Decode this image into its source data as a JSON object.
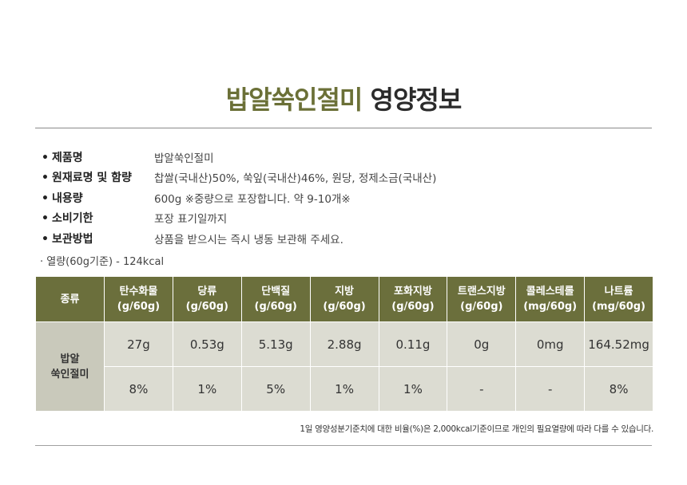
{
  "title": {
    "product": "밥알쑥인절미",
    "suffix": "영양정보"
  },
  "info": [
    {
      "label": "제품명",
      "value": "밥알쑥인절미"
    },
    {
      "label": "원재료명 및 함량",
      "value": "찹쌀(국내산)50%, 쑥잎(국내산)46%, 원당, 정제소금(국내산)"
    },
    {
      "label": "내용량",
      "value": "600g ※중량으로 포장합니다. 약 9-10개※"
    },
    {
      "label": "소비기한",
      "value": "포장 표기일까지"
    },
    {
      "label": "보관방법",
      "value": "상품을 받으시는 즉시 냉동 보관해 주세요."
    }
  ],
  "bullet": "•",
  "calorie_note": "· 열량(60g기준) - 124kcal",
  "table": {
    "corner": "종류",
    "columns": [
      {
        "name": "탄수화물",
        "unit": "(g/60g)"
      },
      {
        "name": "당류",
        "unit": "(g/60g)"
      },
      {
        "name": "단백질",
        "unit": "(g/60g)"
      },
      {
        "name": "지방",
        "unit": "(g/60g)"
      },
      {
        "name": "포화지방",
        "unit": "(g/60g)"
      },
      {
        "name": "트랜스지방",
        "unit": "(g/60g)"
      },
      {
        "name": "콜레스테롤",
        "unit": "(mg/60g)"
      },
      {
        "name": "나트륨",
        "unit": "(mg/60g)"
      }
    ],
    "row_label_line1": "밥알",
    "row_label_line2": "쑥인절미",
    "amounts": [
      "27g",
      "0.53g",
      "5.13g",
      "2.88g",
      "0.11g",
      "0g",
      "0mg",
      "164.52mg"
    ],
    "percents": [
      "8%",
      "1%",
      "5%",
      "1%",
      "1%",
      "-",
      "-",
      "8%"
    ]
  },
  "footnote": "1일 영양성분기준치에 대한 비율(%)은 2,000kcal기준이므로 개인의 필요열량에 따라 다를 수 있습니다.",
  "colors": {
    "accent": "#6b7037",
    "header_bg": "#6b6f3c",
    "cell_bg": "#dcdcd2",
    "rowhead_bg": "#c9c9bb"
  }
}
